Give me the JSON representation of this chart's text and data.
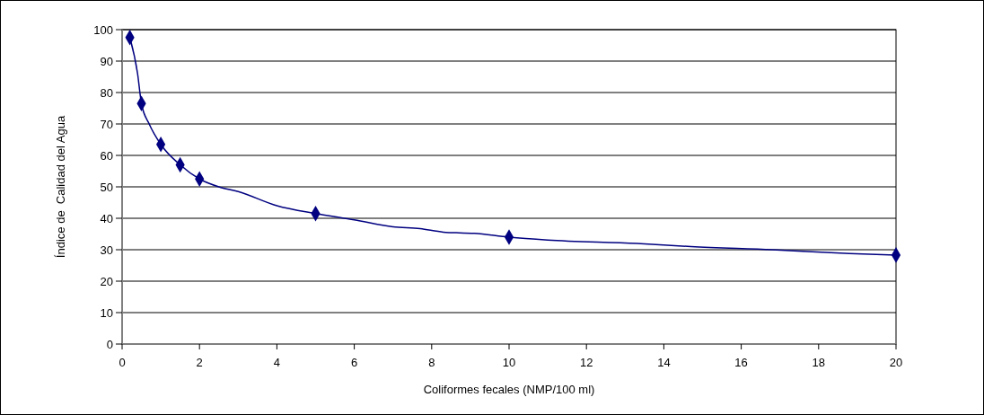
{
  "chart_data": {
    "type": "line",
    "xlabel": "Coliformes fecales (NMP/100 ml)",
    "ylabel": "Índice de  Calidad del Agua",
    "xlim": [
      0,
      20
    ],
    "xticks": [
      0,
      2,
      4,
      6,
      8,
      10,
      12,
      14,
      16,
      18,
      20
    ],
    "ylim": [
      0,
      100
    ],
    "yticks": [
      0,
      10,
      20,
      30,
      40,
      50,
      60,
      70,
      80,
      90,
      100
    ],
    "grid": "y",
    "series": [
      {
        "color": "#000080",
        "marker": "none",
        "x": [
          0.2,
          0.4,
          0.5,
          0.7,
          1,
          1.5,
          2,
          2.5,
          3,
          4,
          5,
          6,
          7,
          7.7,
          8.3,
          9.1,
          10,
          11,
          13.3,
          14.7,
          16.8,
          18.8,
          20
        ],
        "values": [
          97.5,
          86,
          76.5,
          70,
          63.5,
          57,
          52.5,
          50,
          48.5,
          44,
          41.5,
          39.5,
          37.3,
          36.7,
          35.6,
          35.2,
          34,
          33.1,
          32,
          31,
          30,
          28.8,
          28.3
        ]
      },
      {
        "type": "scatter",
        "color": "#000080",
        "marker": "diamond",
        "x": [
          0.2,
          0.5,
          1,
          1.5,
          2,
          5,
          10,
          20
        ],
        "values": [
          97.5,
          76.5,
          63.5,
          57,
          52.5,
          41.5,
          34,
          28.3
        ]
      }
    ]
  }
}
